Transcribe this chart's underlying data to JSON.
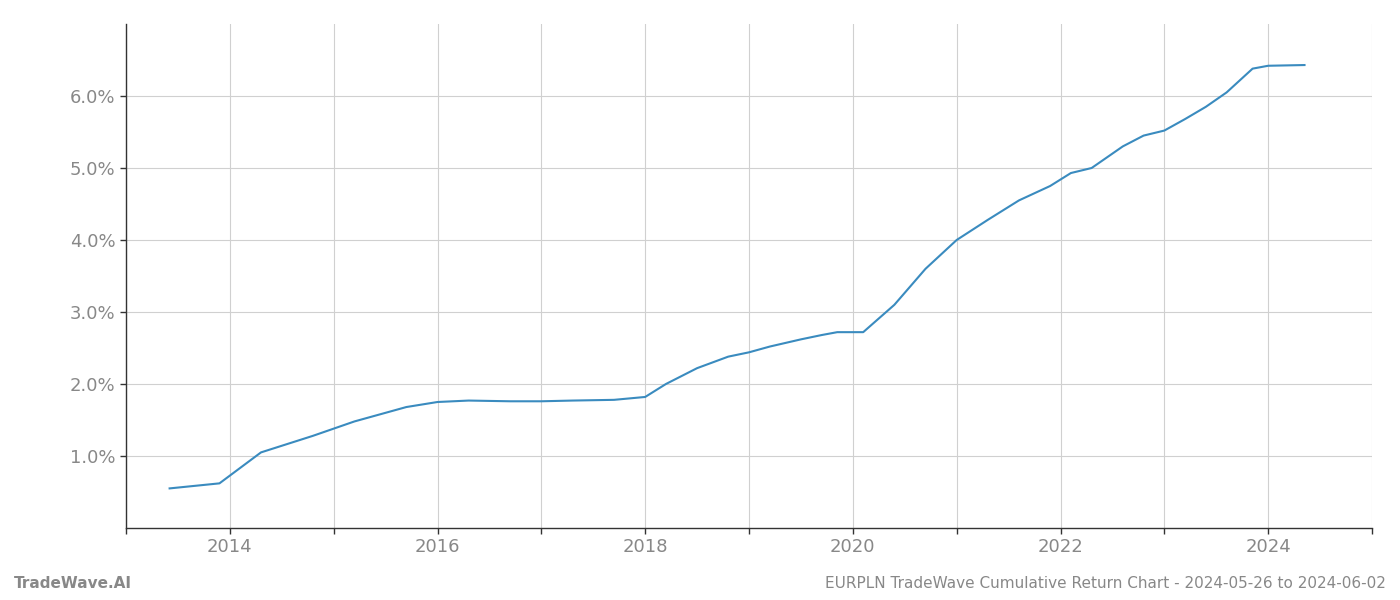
{
  "x_values": [
    2013.42,
    2013.9,
    2014.3,
    2014.8,
    2015.2,
    2015.7,
    2016.0,
    2016.3,
    2016.7,
    2017.0,
    2017.3,
    2017.7,
    2018.0,
    2018.2,
    2018.5,
    2018.8,
    2019.0,
    2019.2,
    2019.5,
    2019.7,
    2019.85,
    2020.1,
    2020.4,
    2020.7,
    2021.0,
    2021.3,
    2021.6,
    2021.9,
    2022.1,
    2022.3,
    2022.6,
    2022.8,
    2023.0,
    2023.2,
    2023.4,
    2023.6,
    2023.85,
    2024.0,
    2024.35
  ],
  "y_values": [
    0.55,
    0.62,
    1.05,
    1.28,
    1.48,
    1.68,
    1.75,
    1.77,
    1.76,
    1.76,
    1.77,
    1.78,
    1.82,
    2.0,
    2.22,
    2.38,
    2.44,
    2.52,
    2.62,
    2.68,
    2.72,
    2.72,
    3.1,
    3.6,
    4.0,
    4.28,
    4.55,
    4.75,
    4.93,
    5.0,
    5.3,
    5.45,
    5.52,
    5.68,
    5.85,
    6.05,
    6.38,
    6.42,
    6.43
  ],
  "line_color": "#3a8bbf",
  "line_width": 1.5,
  "background_color": "#ffffff",
  "grid_color": "#d0d0d0",
  "tick_label_color": "#888888",
  "xlim": [
    2013.3,
    2024.7
  ],
  "ylim": [
    0.0,
    7.0
  ],
  "yticks": [
    1.0,
    2.0,
    3.0,
    4.0,
    5.0,
    6.0
  ],
  "xticks": [
    2014,
    2016,
    2018,
    2020,
    2022,
    2024
  ],
  "xticks_minor": [
    2013,
    2014,
    2015,
    2016,
    2017,
    2018,
    2019,
    2020,
    2021,
    2022,
    2023,
    2024,
    2025
  ],
  "footer_left": "TradeWave.AI",
  "footer_right": "EURPLN TradeWave Cumulative Return Chart - 2024-05-26 to 2024-06-02",
  "footer_fontsize": 11,
  "tick_fontsize": 13,
  "spine_color": "#333333"
}
